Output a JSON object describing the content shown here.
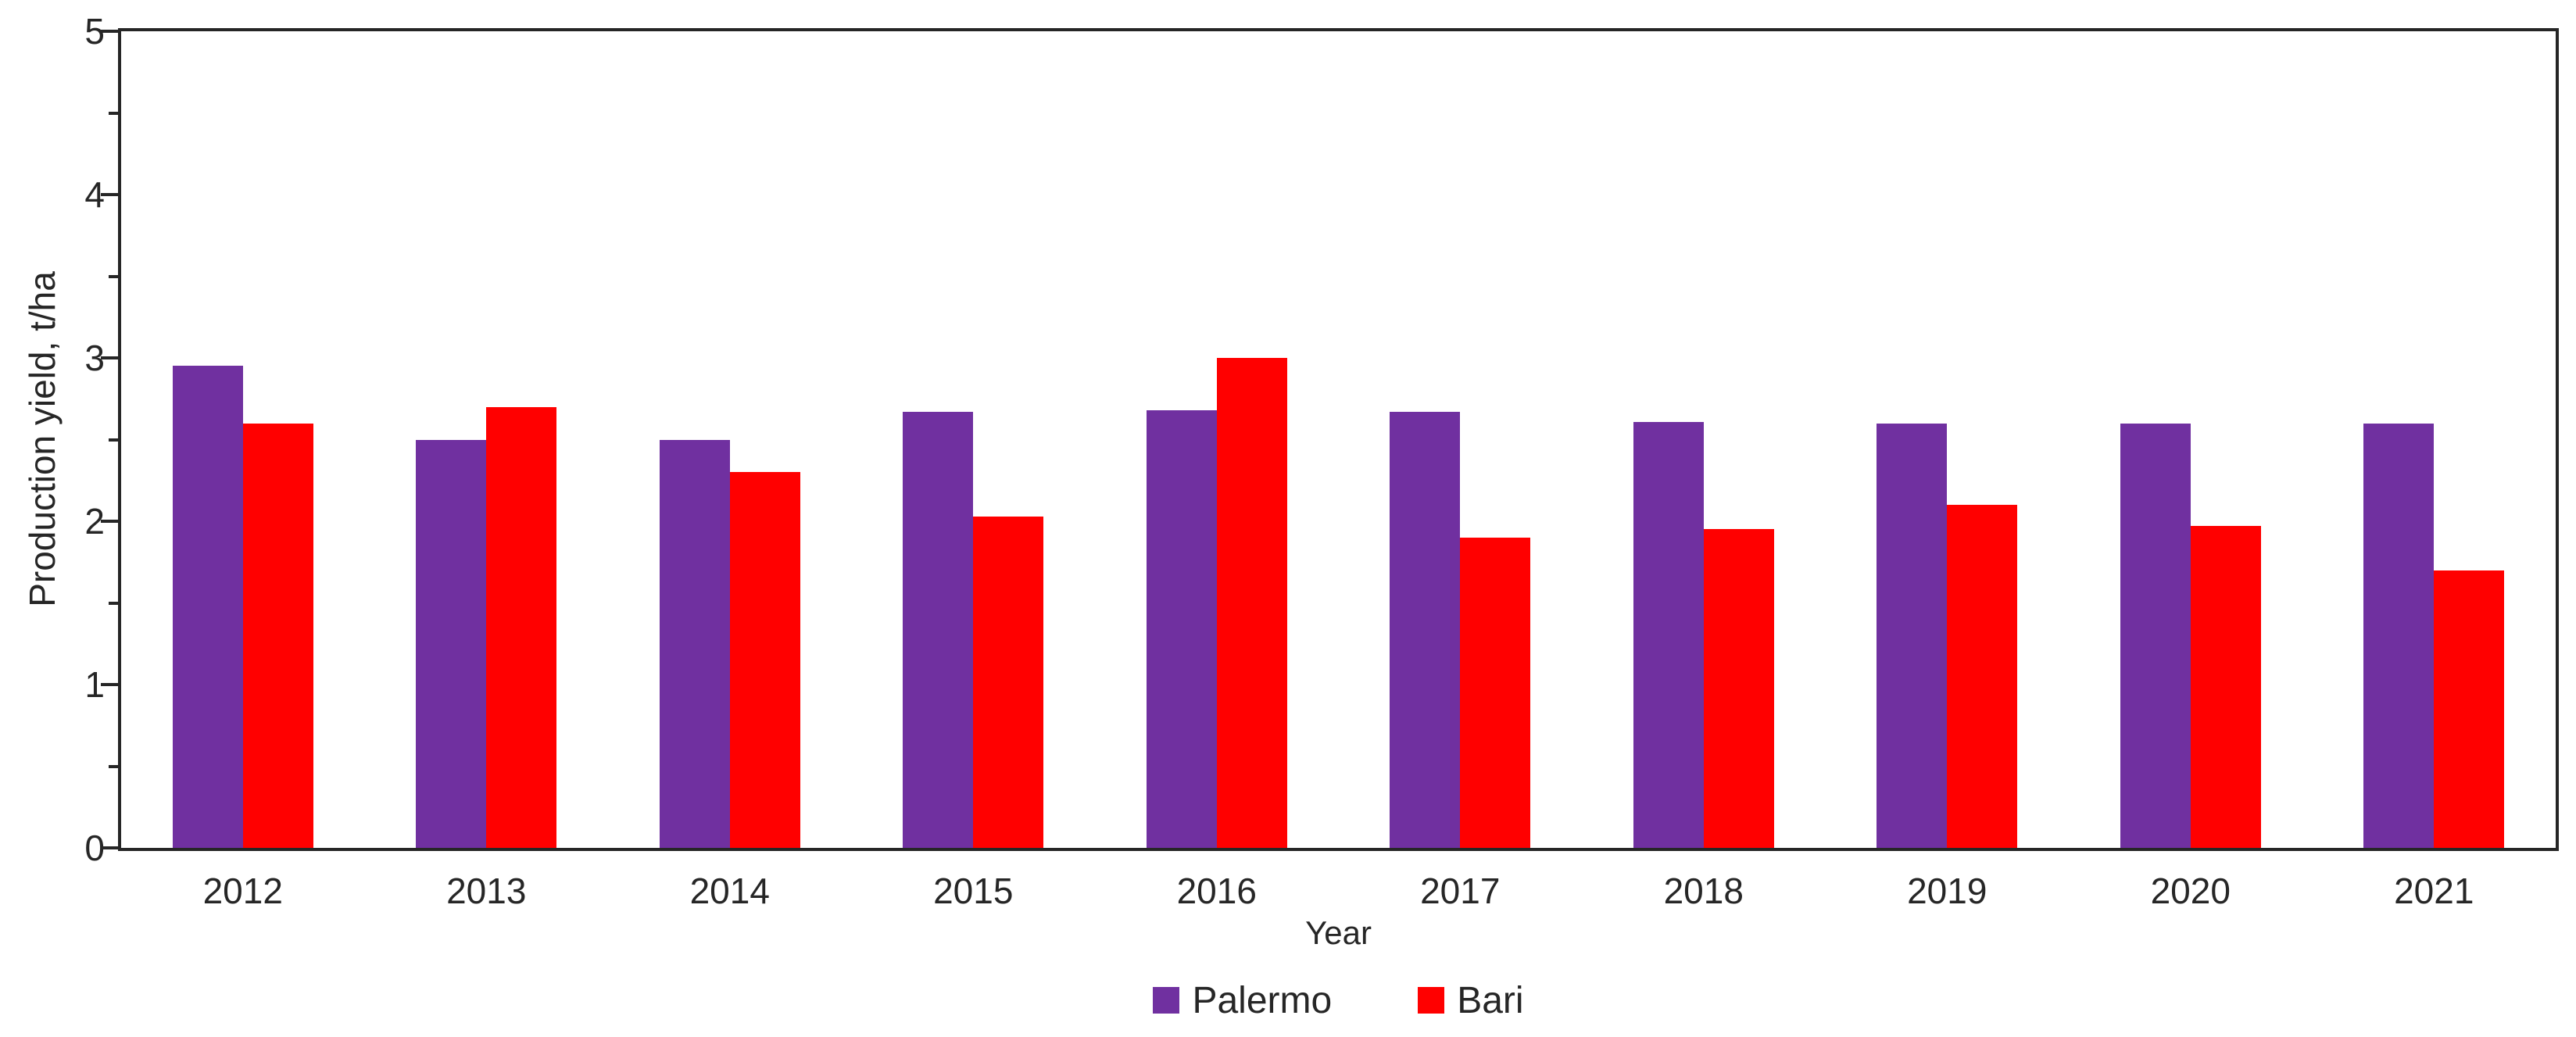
{
  "chart_data": {
    "type": "bar",
    "title": "",
    "categories": [
      "2012",
      "2013",
      "2014",
      "2015",
      "2016",
      "2017",
      "2018",
      "2019",
      "2020",
      "2021"
    ],
    "series": [
      {
        "name": "Palermo",
        "color": "#7030A0",
        "values": [
          2.95,
          2.5,
          2.5,
          2.67,
          2.68,
          2.67,
          2.61,
          2.6,
          2.6,
          2.6
        ]
      },
      {
        "name": "Bari",
        "color": "#FF0000",
        "values": [
          2.6,
          2.7,
          2.3,
          2.03,
          3.0,
          1.9,
          1.95,
          2.1,
          1.97,
          1.7
        ]
      }
    ],
    "xlabel": "Year",
    "ylabel": "Production yield, t/ha",
    "ylim": [
      0,
      5
    ],
    "ytick_step": 1,
    "yminor_step": 0.5,
    "ytick_labels": [
      "0",
      "1",
      "2",
      "3",
      "4",
      "5"
    ],
    "grid": false,
    "legend_position": "bottom"
  },
  "colors": {
    "axis": "#262626",
    "text": "#262626",
    "background": "#FFFFFF"
  }
}
